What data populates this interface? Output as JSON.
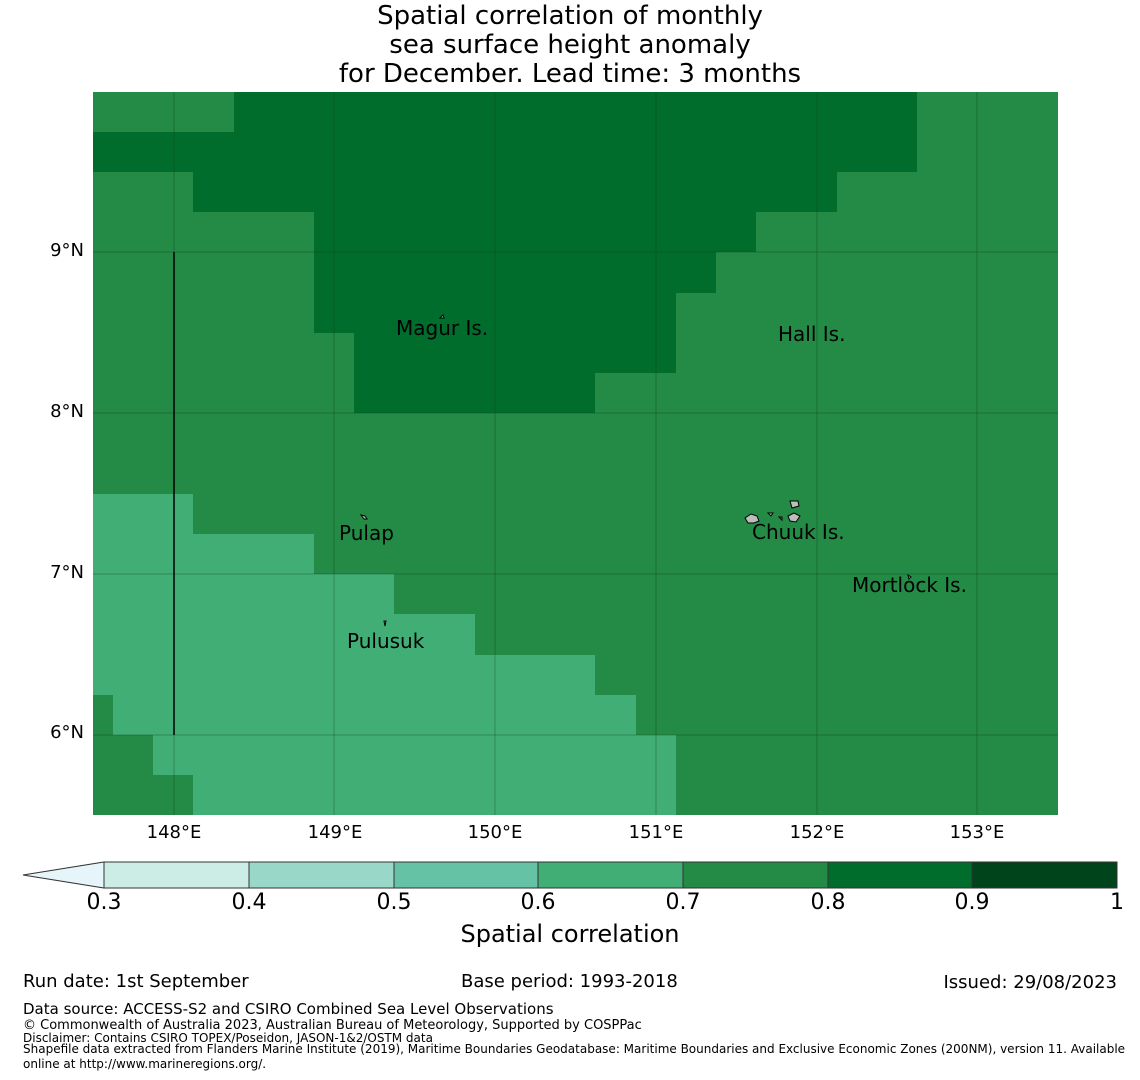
{
  "title": {
    "line1": "Spatial correlation of monthly",
    "line2": "sea surface height anomaly",
    "line3": "for December. Lead time: 3 months"
  },
  "axes": {
    "latitude_labels": [
      "9°N",
      "8°N",
      "7°N",
      "6°N"
    ],
    "longitude_labels": [
      "148°E",
      "149°E",
      "150°E",
      "151°E",
      "152°E",
      "153°E"
    ]
  },
  "places": {
    "magur": "Magur Is.",
    "hall": "Hall Is.",
    "pulap": "Pulap",
    "chuuk": "Chuuk Is.",
    "mortlock": "Mortlock Is.",
    "pulusuk": "Pulusuk"
  },
  "colorbar": {
    "title": "Spatial correlation",
    "ticks": [
      "0.3",
      "0.4",
      "0.5",
      "0.6",
      "0.7",
      "0.8",
      "0.9",
      "1"
    ],
    "colors": {
      "below": "#e5f5f9",
      "c03_04": "#ccece6",
      "c04_05": "#99d8c9",
      "c05_06": "#66c2a4",
      "c06_07": "#41ae76",
      "c07_08": "#238b45",
      "c08_09": "#006d2c",
      "c09_10": "#00441b"
    }
  },
  "footer": {
    "run_date": "Run date: 1st September",
    "base_period": "Base period: 1993-2018",
    "issued": "Issued: 29/08/2023",
    "data_source": "Data source: ACCESS-S2 and CSIRO Combined Sea Level Observations",
    "copyright": "© Commonwealth of Australia 2023, Australian Bureau of Meteorology, Supported by COSPPac",
    "disclaimer": "Disclaimer: Contains CSIRO TOPEX/Poseidon, JASON-1&2/OSTM data",
    "shapefile": "Shapefile data extracted from Flanders Marine Institute (2019), Maritime Boundaries Geodatabase: Maritime Boundaries and Exclusive Economic Zones (200NM), version 11. Available online at http://www.marineregions.org/."
  }
}
